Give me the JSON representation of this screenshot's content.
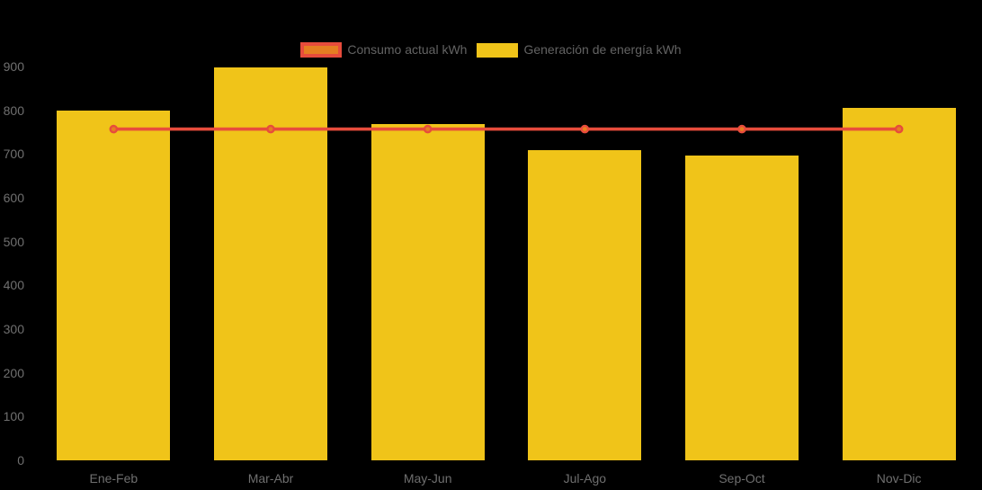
{
  "chart_data": {
    "type": "combo",
    "title": "",
    "xlabel": "",
    "ylabel": "",
    "categories": [
      "Ene-Feb",
      "Mar-Abr",
      "May-Jun",
      "Jul-Ago",
      "Sep-Oct",
      "Nov-Dic"
    ],
    "series": [
      {
        "name": "Consumo actual kWh",
        "type": "line",
        "values": [
          757,
          757,
          757,
          757,
          757,
          757
        ],
        "color": "#e74c3c",
        "marker_fill": "#e67e22",
        "marker_stroke": "#e74c3c"
      },
      {
        "name": "Generación de energía kWh",
        "type": "bar",
        "values": [
          800,
          897,
          768,
          708,
          697,
          806
        ],
        "color": "#f0c419"
      }
    ],
    "ylim": [
      0,
      900
    ],
    "yticks": [
      0,
      100,
      200,
      300,
      400,
      500,
      600,
      700,
      800,
      900
    ],
    "grid": false,
    "legend_position": "top-center",
    "background": "#000000",
    "axis_label_color": "#6f6f6f",
    "legend_text_color": "#636363"
  }
}
